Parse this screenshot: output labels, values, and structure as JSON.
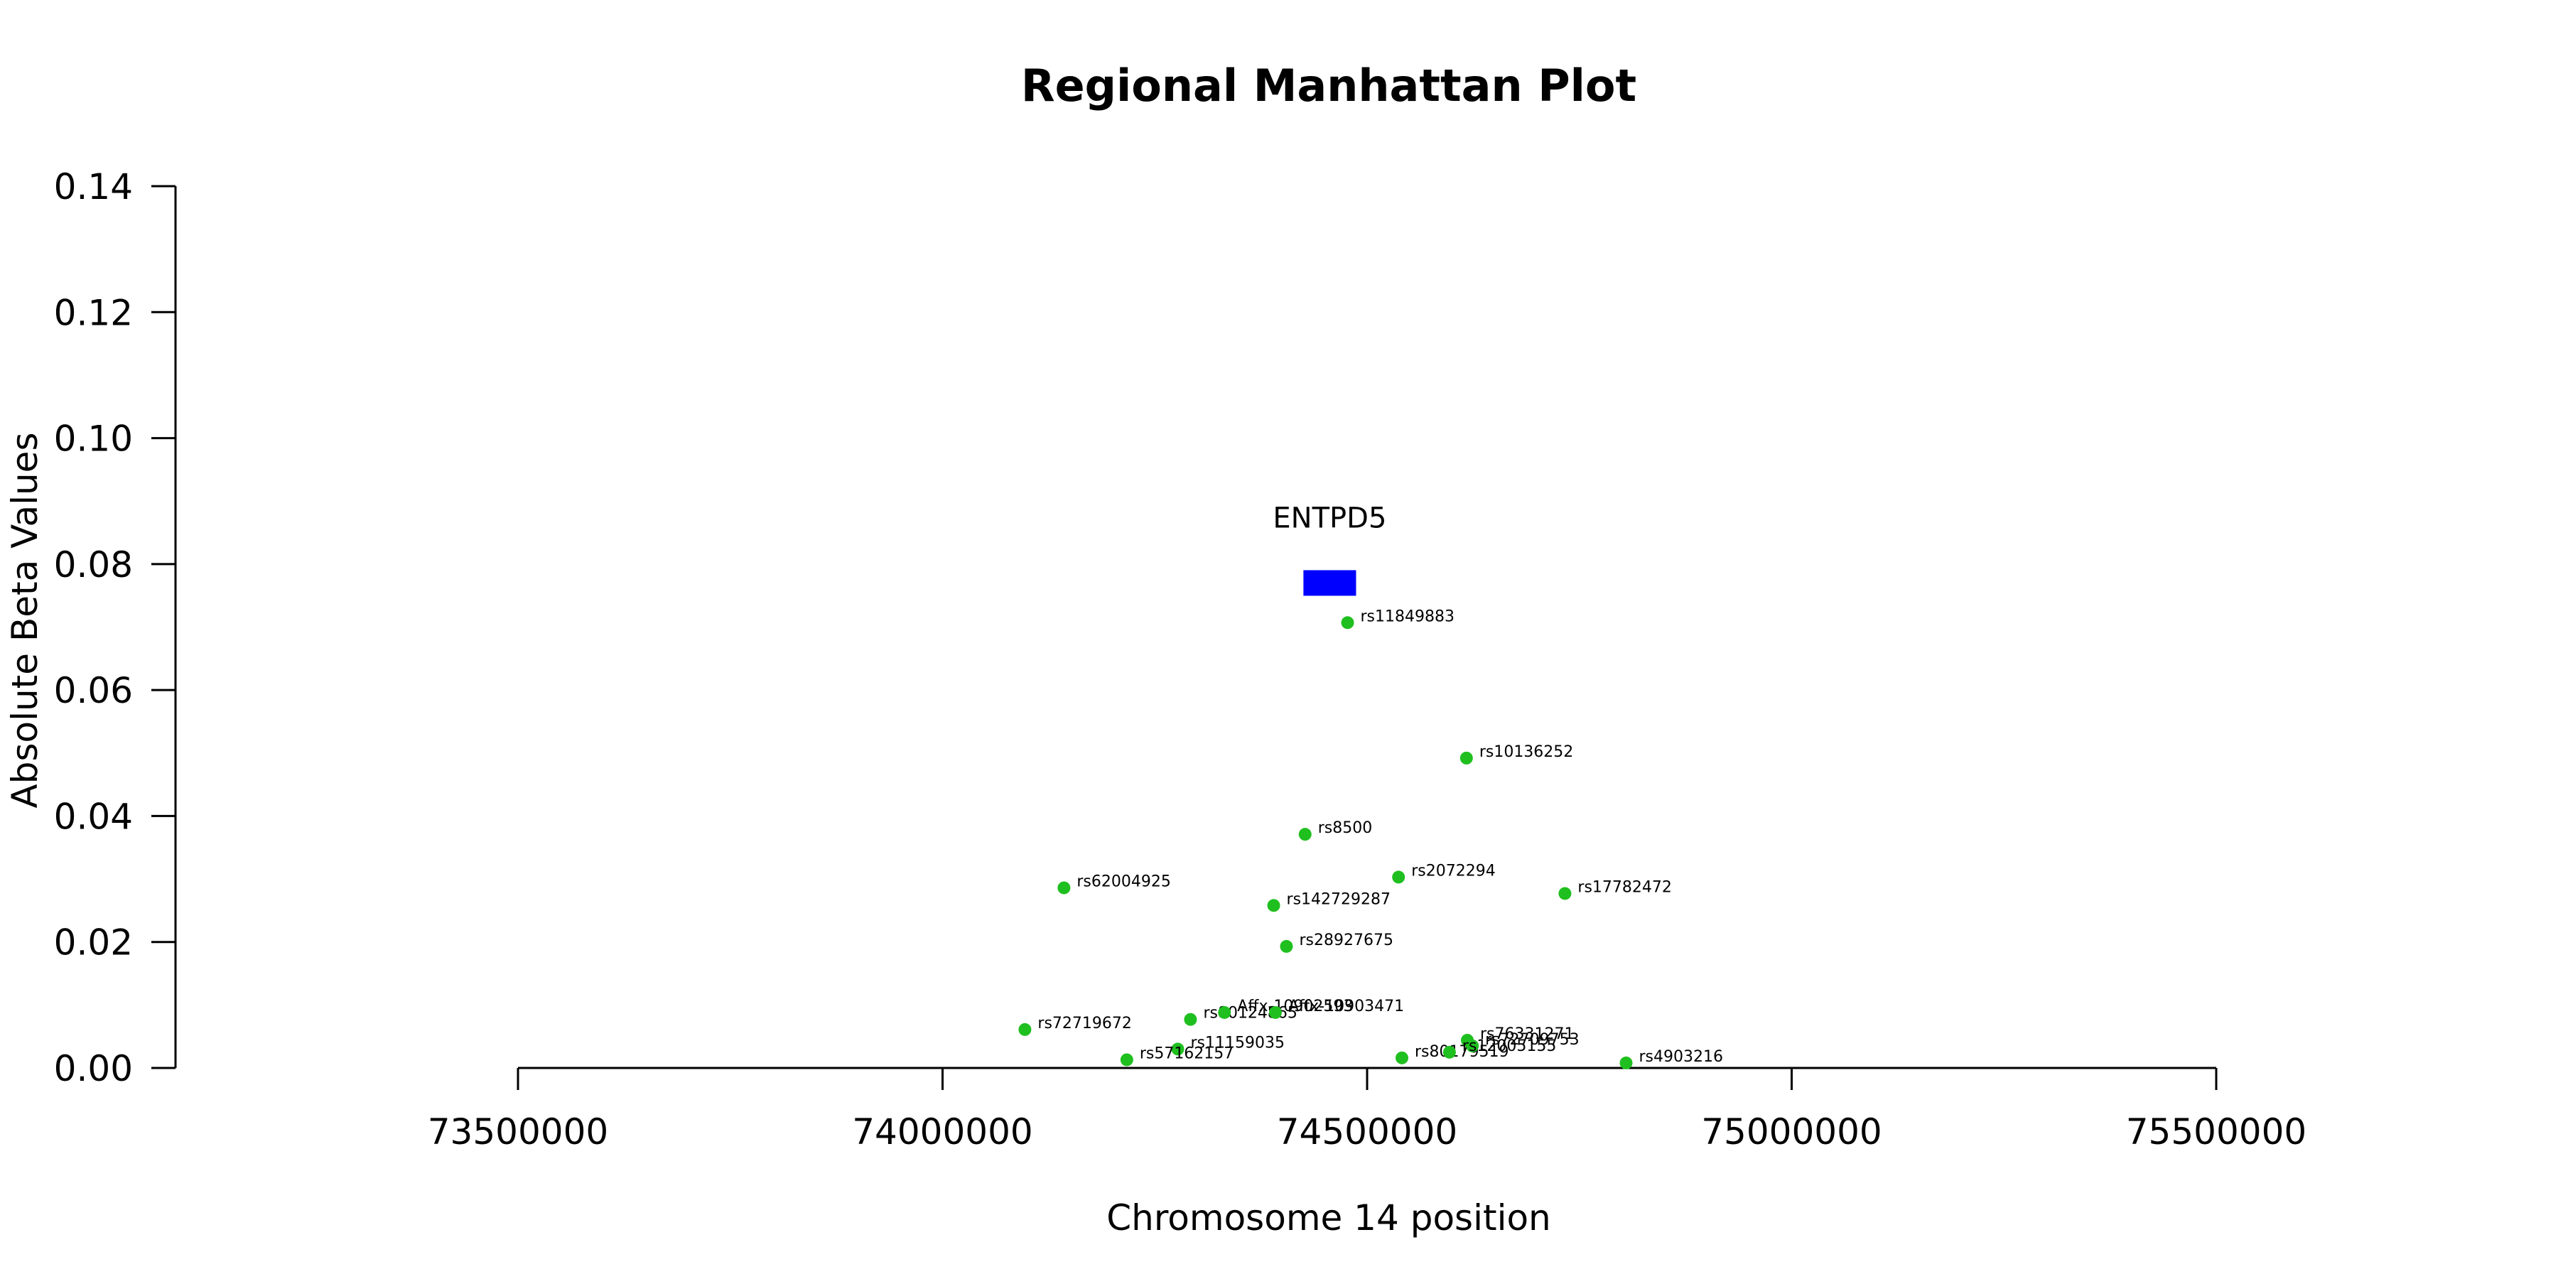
{
  "chart_data": {
    "type": "scatter",
    "title": "Regional Manhattan Plot",
    "xlabel": "Chromosome 14 position",
    "ylabel": "Absolute Beta Values",
    "xlim": [
      73500000,
      75500000
    ],
    "ylim": [
      0,
      0.14
    ],
    "x_ticks": [
      "73500000",
      "74000000",
      "74500000",
      "75000000",
      "75500000"
    ],
    "y_ticks": [
      "0.00",
      "0.02",
      "0.04",
      "0.06",
      "0.08",
      "0.10",
      "0.12",
      "0.14"
    ],
    "grid": false,
    "colors": {
      "points": "#1fbf1f",
      "gene": "#0000ff",
      "axis": "#000000"
    },
    "gene": {
      "name": "ENTPD5",
      "start": 74425000,
      "end": 74487000,
      "y": 0.077
    },
    "points": [
      {
        "label": "rs11849883",
        "x": 74477000,
        "y": 0.0707
      },
      {
        "label": "rs10136252",
        "x": 74617000,
        "y": 0.0492
      },
      {
        "label": "rs8500",
        "x": 74427000,
        "y": 0.0371
      },
      {
        "label": "rs2072294",
        "x": 74537000,
        "y": 0.0303
      },
      {
        "label": "rs62004925",
        "x": 74143000,
        "y": 0.0286
      },
      {
        "label": "rs142729287",
        "x": 74390000,
        "y": 0.0258
      },
      {
        "label": "rs17782472",
        "x": 74733000,
        "y": 0.0277
      },
      {
        "label": "rs28927675",
        "x": 74405000,
        "y": 0.0193
      },
      {
        "label": "rs72719672",
        "x": 74097000,
        "y": 0.0061
      },
      {
        "label": "rs80124865",
        "x": 74292000,
        "y": 0.0077
      },
      {
        "label": "Affx-10902593",
        "x": 74332000,
        "y": 0.0088
      },
      {
        "label": "Affx-10903471",
        "x": 74392000,
        "y": 0.0088
      },
      {
        "label": "rs11159035",
        "x": 74277000,
        "y": 0.003
      },
      {
        "label": "rs57162157",
        "x": 74217000,
        "y": 0.0013
      },
      {
        "label": "rs80179519",
        "x": 74541000,
        "y": 0.0016
      },
      {
        "label": "rs76331271",
        "x": 74618000,
        "y": 0.0044
      },
      {
        "label": "rs72709753",
        "x": 74624000,
        "y": 0.0035
      },
      {
        "label": "rs12005155",
        "x": 74597000,
        "y": 0.0025
      },
      {
        "label": "rs4903216",
        "x": 74805000,
        "y": 0.0008
      }
    ]
  }
}
